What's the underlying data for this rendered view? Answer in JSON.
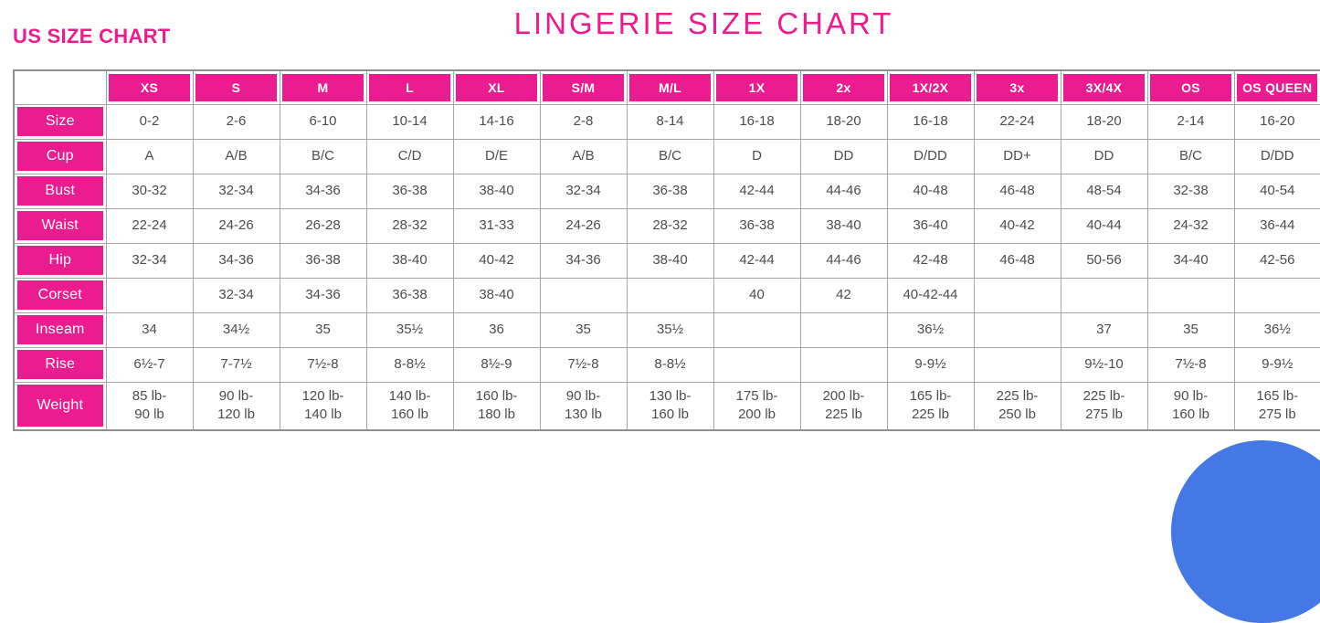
{
  "page": {
    "us_heading": "US SIZE CHART",
    "title": "LINGERIE SIZE CHART"
  },
  "colors": {
    "pink": "#eb1c8f",
    "grid": "#a5a5a5",
    "outer": "#8f8f8f",
    "text": "#4d4d4d",
    "chat": "#4478e4"
  },
  "chart_data": {
    "type": "table",
    "title": "LINGERIE SIZE CHART",
    "subtitle": "US SIZE CHART",
    "columns": [
      "",
      "XS",
      "S",
      "M",
      "L",
      "XL",
      "S/M",
      "M/L",
      "1X",
      "2x",
      "1X/2X",
      "3x",
      "3X/4X",
      "OS",
      "OS QUEEN"
    ],
    "rows": [
      {
        "label": "Size",
        "cells": [
          "0-2",
          "2-6",
          "6-10",
          "10-14",
          "14-16",
          "2-8",
          "8-14",
          "16-18",
          "18-20",
          "16-18",
          "22-24",
          "18-20",
          "2-14",
          "16-20"
        ]
      },
      {
        "label": "Cup",
        "cells": [
          "A",
          "A/B",
          "B/C",
          "C/D",
          "D/E",
          "A/B",
          "B/C",
          "D",
          "DD",
          "D/DD",
          "DD+",
          "DD",
          "B/C",
          "D/DD"
        ]
      },
      {
        "label": "Bust",
        "cells": [
          "30-32",
          "32-34",
          "34-36",
          "36-38",
          "38-40",
          "32-34",
          "36-38",
          "42-44",
          "44-46",
          "40-48",
          "46-48",
          "48-54",
          "32-38",
          "40-54"
        ]
      },
      {
        "label": "Waist",
        "cells": [
          "22-24",
          "24-26",
          "26-28",
          "28-32",
          "31-33",
          "24-26",
          "28-32",
          "36-38",
          "38-40",
          "36-40",
          "40-42",
          "40-44",
          "24-32",
          "36-44"
        ]
      },
      {
        "label": "Hip",
        "cells": [
          "32-34",
          "34-36",
          "36-38",
          "38-40",
          "40-42",
          "34-36",
          "38-40",
          "42-44",
          "44-46",
          "42-48",
          "46-48",
          "50-56",
          "34-40",
          "42-56"
        ]
      },
      {
        "label": "Corset",
        "cells": [
          "",
          "32-34",
          "34-36",
          "36-38",
          "38-40",
          "",
          "",
          "40",
          "42",
          "40-42-44",
          "",
          "",
          "",
          ""
        ]
      },
      {
        "label": "Inseam",
        "cells": [
          "34",
          "34½",
          "35",
          "35½",
          "36",
          "35",
          "35½",
          "",
          "",
          "36½",
          "",
          "37",
          "35",
          "36½"
        ]
      },
      {
        "label": "Rise",
        "cells": [
          "6½-7",
          "7-7½",
          "7½-8",
          "8-8½",
          "8½-9",
          "7½-8",
          "8-8½",
          "",
          "",
          "9-9½",
          "",
          "9½-10",
          "7½-8",
          "9-9½"
        ]
      },
      {
        "label": "Weight",
        "cells": [
          "85 lb-\n90 lb",
          "90 lb-\n120 lb",
          "120 lb-\n140 lb",
          "140 lb-\n160 lb",
          "160 lb-\n180 lb",
          "90 lb-\n130 lb",
          "130 lb-\n160 lb",
          "175 lb-\n200 lb",
          "200 lb-\n225 lb",
          "165 lb-\n225 lb",
          "225 lb-\n250 lb",
          "225 lb-\n275 lb",
          "90 lb-\n160 lb",
          "165 lb-\n275 lb"
        ]
      }
    ]
  },
  "widgets": {
    "chat_button": {
      "icon": "chat-bubble-icon",
      "color": "#4478e4"
    }
  }
}
